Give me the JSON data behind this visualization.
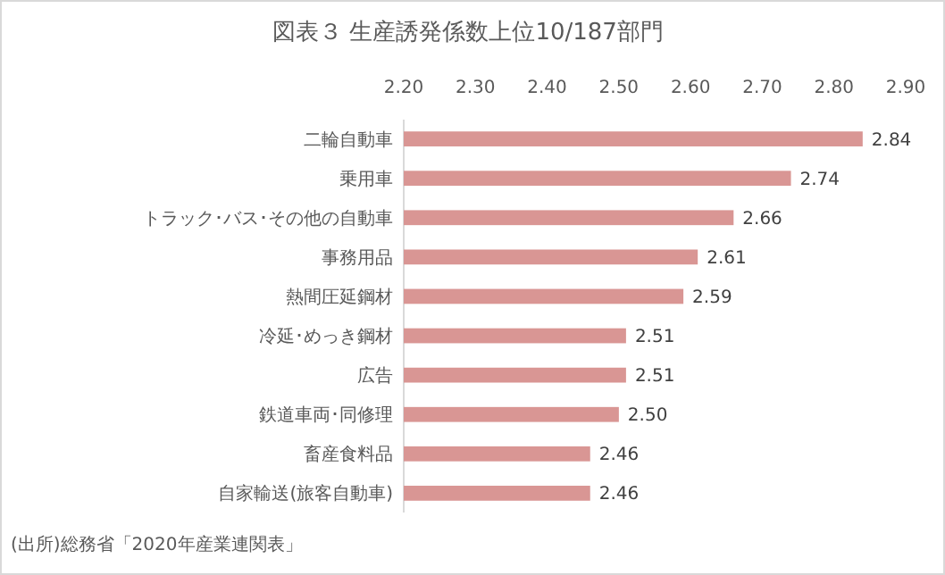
{
  "chart_data": {
    "type": "bar",
    "orientation": "horizontal",
    "title": "図表３  生産誘発係数上位10/187部門",
    "categories": [
      "二輪自動車",
      "乗用車",
      "トラック･バス･その他の自動車",
      "事務用品",
      "熱間圧延鋼材",
      "冷延･めっき鋼材",
      "広告",
      "鉄道車両･同修理",
      "畜産食料品",
      "自家輸送(旅客自動車)"
    ],
    "values": [
      2.84,
      2.74,
      2.66,
      2.61,
      2.59,
      2.51,
      2.51,
      2.5,
      2.46,
      2.46
    ],
    "color": "#d99694",
    "xlim": [
      2.2,
      2.9
    ],
    "xticks": [
      {
        "value": 2.2,
        "label": "2.20"
      },
      {
        "value": 2.3,
        "label": "2.30"
      },
      {
        "value": 2.4,
        "label": "2.40"
      },
      {
        "value": 2.5,
        "label": "2.50"
      },
      {
        "value": 2.6,
        "label": "2.60"
      },
      {
        "value": 2.7,
        "label": "2.70"
      },
      {
        "value": 2.8,
        "label": "2.80"
      },
      {
        "value": 2.9,
        "label": "2.90"
      }
    ],
    "value_labels": [
      "2.84",
      "2.74",
      "2.66",
      "2.61",
      "2.59",
      "2.51",
      "2.51",
      "2.50",
      "2.46",
      "2.46"
    ],
    "grid": false,
    "annotations": [
      "(出所)総務省「2020年産業連関表」"
    ]
  }
}
